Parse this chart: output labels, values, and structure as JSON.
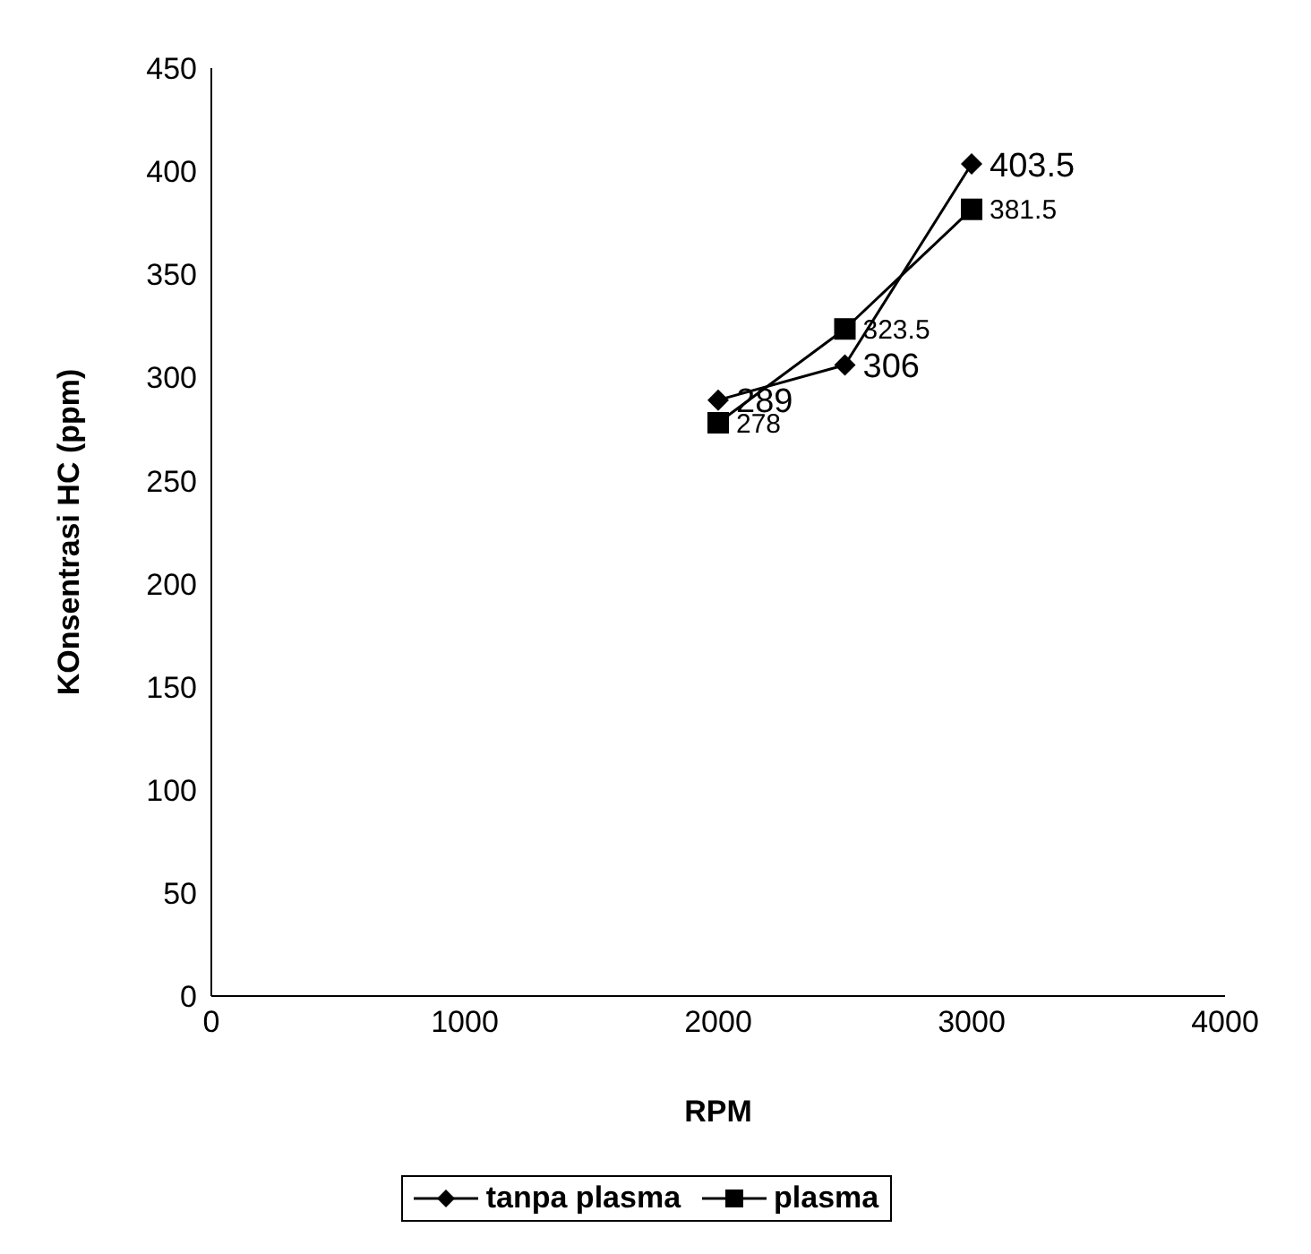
{
  "chart_data": {
    "type": "line",
    "xlabel": "RPM",
    "ylabel": "KOnsentrasi HC (ppm)",
    "x": [
      2000,
      2500,
      3000
    ],
    "series": [
      {
        "name": "tanpa plasma",
        "color": "#000000",
        "values": [
          289,
          306,
          403.5
        ],
        "marker": "diamond"
      },
      {
        "name": "plasma",
        "color": "#000000",
        "values": [
          278,
          323.5,
          381.5
        ],
        "marker": "square"
      }
    ],
    "xlim": [
      0,
      4000
    ],
    "xticks": [
      0,
      1000,
      2000,
      3000,
      4000
    ],
    "ylim": [
      0,
      450
    ],
    "yticks": [
      0,
      50,
      100,
      150,
      200,
      250,
      300,
      350,
      400,
      450
    ],
    "grid": false,
    "legend": "bottom",
    "data_labels": true
  }
}
